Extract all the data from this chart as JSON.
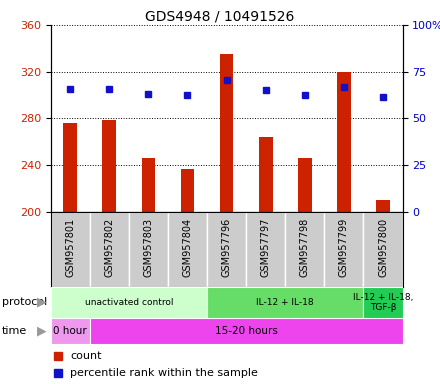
{
  "title": "GDS4948 / 10491526",
  "samples": [
    "GSM957801",
    "GSM957802",
    "GSM957803",
    "GSM957804",
    "GSM957796",
    "GSM957797",
    "GSM957798",
    "GSM957799",
    "GSM957800"
  ],
  "counts": [
    276,
    279,
    246,
    237,
    335,
    264,
    246,
    320,
    210
  ],
  "percentile_ranks_left": [
    305,
    305,
    301,
    300,
    313,
    304,
    300,
    307,
    298
  ],
  "count_base": 200,
  "left_ylim": [
    200,
    360
  ],
  "left_yticks": [
    200,
    240,
    280,
    320,
    360
  ],
  "right_ylim": [
    0,
    100
  ],
  "right_yticks": [
    0,
    25,
    50,
    75,
    100
  ],
  "right_yticklabels": [
    "0",
    "25",
    "50",
    "75",
    "100%"
  ],
  "bar_color": "#cc2200",
  "dot_color": "#1111cc",
  "protocol_groups": [
    {
      "label": "unactivated control",
      "start": 0,
      "end": 4,
      "color": "#ccffcc"
    },
    {
      "label": "IL-12 + IL-18",
      "start": 4,
      "end": 8,
      "color": "#66dd66"
    },
    {
      "label": "IL-12 + IL-18,\nTGF-β",
      "start": 8,
      "end": 9,
      "color": "#22cc55"
    }
  ],
  "time_groups": [
    {
      "label": "0 hour",
      "start": 0,
      "end": 1,
      "color": "#ee99ee"
    },
    {
      "label": "15-20 hours",
      "start": 1,
      "end": 9,
      "color": "#ee44ee"
    }
  ],
  "legend_count_label": "count",
  "legend_pct_label": "percentile rank within the sample",
  "grid_color": "#000000",
  "title_fontsize": 10,
  "sample_label_fontsize": 7,
  "bar_width": 0.35,
  "sample_box_color": "#cccccc",
  "left_label_color": "#cc2200",
  "right_label_color": "#0000cc"
}
